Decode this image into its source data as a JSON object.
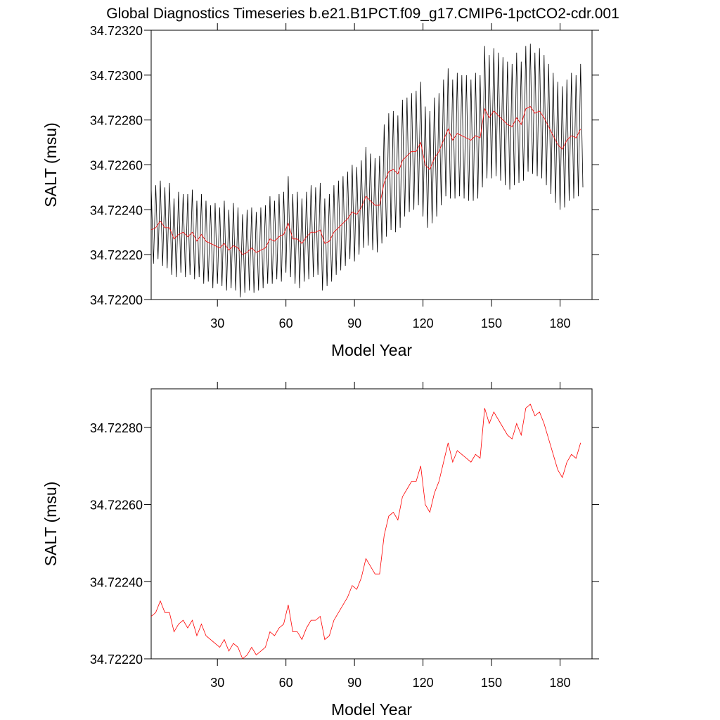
{
  "chart_data": [
    {
      "type": "line",
      "title": "Global Diagnostics Timeseries b.e21.B1PCT.f09_g17.CMIP6-1pctCO2-cdr.001",
      "xlabel": "Model Year",
      "ylabel": "SALT (msu)",
      "xlim": [
        1,
        194
      ],
      "xticks": [
        30,
        60,
        90,
        120,
        150,
        180
      ],
      "ylim": [
        34.722,
        34.7232
      ],
      "yticks": [
        {
          "value": 34.722,
          "label": "34.72200"
        },
        {
          "value": 34.7222,
          "label": "34.72220"
        },
        {
          "value": 34.7224,
          "label": "34.72240"
        },
        {
          "value": 34.7226,
          "label": "34.72260"
        },
        {
          "value": 34.7228,
          "label": "34.72280"
        },
        {
          "value": 34.723,
          "label": "34.72300"
        },
        {
          "value": 34.7232,
          "label": "34.72320"
        }
      ],
      "series": [
        {
          "color": "#000000",
          "x": [
            1,
            2,
            3,
            4,
            5,
            6,
            7,
            8,
            9,
            10,
            11,
            12,
            13,
            14,
            15,
            16,
            17,
            18,
            19,
            20,
            21,
            22,
            23,
            24,
            25,
            26,
            27,
            28,
            29,
            30,
            31,
            32,
            33,
            34,
            35,
            36,
            37,
            38,
            39,
            40,
            41,
            42,
            43,
            44,
            45,
            46,
            47,
            48,
            49,
            50,
            51,
            52,
            53,
            54,
            55,
            56,
            57,
            58,
            59,
            60,
            61,
            62,
            63,
            64,
            65,
            66,
            67,
            68,
            69,
            70,
            71,
            72,
            73,
            74,
            75,
            76,
            77,
            78,
            79,
            80,
            81,
            82,
            83,
            84,
            85,
            86,
            87,
            88,
            89,
            90,
            91,
            92,
            93,
            94,
            95,
            96,
            97,
            98,
            99,
            100,
            101,
            102,
            103,
            104,
            105,
            106,
            107,
            108,
            109,
            110,
            111,
            112,
            113,
            114,
            115,
            116,
            117,
            118,
            119,
            120,
            121,
            122,
            123,
            124,
            125,
            126,
            127,
            128,
            129,
            130,
            131,
            132,
            133,
            134,
            135,
            136,
            137,
            138,
            139,
            140,
            141,
            142,
            143,
            144,
            145,
            146,
            147,
            148,
            149,
            150,
            151,
            152,
            153,
            154,
            155,
            156,
            157,
            158,
            159,
            160,
            161,
            162,
            163,
            164,
            165,
            166,
            167,
            168,
            169,
            170,
            171,
            172,
            173,
            174,
            175,
            176,
            177,
            178,
            179,
            180,
            181,
            182,
            183,
            184,
            185,
            186,
            187,
            188,
            189,
            190
          ],
          "values": [
            34.7225,
            34.72216,
            34.72251,
            34.72218,
            34.72253,
            34.72215,
            34.7225,
            34.72214,
            34.72252,
            34.72211,
            34.72245,
            34.7221,
            34.72248,
            34.72212,
            34.72247,
            34.7221,
            34.72247,
            34.72211,
            34.72249,
            34.72209,
            34.72244,
            34.7221,
            34.72247,
            34.72207,
            34.72244,
            34.72208,
            34.72242,
            34.72205,
            34.72243,
            34.72207,
            34.72241,
            34.72206,
            34.72244,
            34.72204,
            34.7224,
            34.72205,
            34.72243,
            34.72204,
            34.72241,
            34.72201,
            34.72238,
            34.72203,
            34.7224,
            34.72204,
            34.72241,
            34.72203,
            34.72239,
            34.72204,
            34.72241,
            34.72205,
            34.72242,
            34.72207,
            34.72246,
            34.72207,
            34.72244,
            34.72209,
            34.72247,
            34.72208,
            34.72248,
            34.72212,
            34.72255,
            34.7221,
            34.72247,
            34.72207,
            34.72248,
            34.72205,
            34.72245,
            34.72208,
            34.72248,
            34.72209,
            34.72251,
            34.7221,
            34.7225,
            34.72211,
            34.72252,
            34.72204,
            34.72245,
            34.72206,
            34.72247,
            34.72208,
            34.72251,
            34.72211,
            34.72253,
            34.72213,
            34.72255,
            34.72215,
            34.72257,
            34.72218,
            34.7226,
            34.72217,
            34.72259,
            34.7222,
            34.72262,
            34.72223,
            34.72268,
            34.72224,
            34.72265,
            34.72222,
            34.72263,
            34.72221,
            34.72264,
            34.72225,
            34.72278,
            34.72228,
            34.72283,
            34.72231,
            34.72284,
            34.7223,
            34.72282,
            34.72232,
            34.72289,
            34.72237,
            34.7229,
            34.72239,
            34.72292,
            34.7224,
            34.72293,
            34.72242,
            34.72297,
            34.72237,
            34.72286,
            34.72232,
            34.72284,
            34.72234,
            34.7229,
            34.72237,
            34.72292,
            34.72242,
            34.72298,
            34.72246,
            34.72303,
            34.72245,
            34.72298,
            34.72245,
            34.72301,
            34.72246,
            34.723,
            34.72245,
            34.723,
            34.72244,
            34.72298,
            34.72244,
            34.72301,
            34.72245,
            34.723,
            34.7225,
            34.72313,
            34.72254,
            34.72309,
            34.72254,
            34.72312,
            34.72255,
            34.7231,
            34.72253,
            34.72308,
            34.72251,
            34.72306,
            34.72249,
            34.72305,
            34.72251,
            34.7231,
            34.72252,
            34.72306,
            34.72253,
            34.72313,
            34.72257,
            34.72314,
            34.72256,
            34.7231,
            34.72255,
            34.72312,
            34.72254,
            34.72309,
            34.72251,
            34.72305,
            34.72247,
            34.72301,
            34.72243,
            34.72297,
            34.7224,
            34.72295,
            34.72241,
            34.72298,
            34.72244,
            34.72301,
            34.72245,
            34.723,
            34.72246,
            34.72305,
            34.7225
          ]
        },
        {
          "color": "#ff0000",
          "x": [
            1,
            3,
            5,
            7,
            9,
            11,
            13,
            15,
            17,
            19,
            21,
            23,
            25,
            27,
            29,
            31,
            33,
            35,
            37,
            39,
            41,
            43,
            45,
            47,
            49,
            51,
            53,
            55,
            57,
            59,
            61,
            63,
            65,
            67,
            69,
            71,
            73,
            75,
            77,
            79,
            81,
            83,
            85,
            87,
            89,
            91,
            93,
            95,
            97,
            99,
            101,
            103,
            105,
            107,
            109,
            111,
            113,
            115,
            117,
            119,
            121,
            123,
            125,
            127,
            129,
            131,
            133,
            135,
            137,
            139,
            141,
            143,
            145,
            147,
            149,
            151,
            153,
            155,
            157,
            159,
            161,
            163,
            165,
            167,
            169,
            171,
            173,
            175,
            177,
            179,
            181,
            183,
            185,
            187,
            189
          ],
          "values": [
            34.72231,
            34.72232,
            34.72235,
            34.72232,
            34.72232,
            34.72227,
            34.72229,
            34.7223,
            34.72228,
            34.7223,
            34.72226,
            34.72229,
            34.72226,
            34.72225,
            34.72224,
            34.72223,
            34.72225,
            34.72222,
            34.72224,
            34.72223,
            34.7222,
            34.72221,
            34.72223,
            34.72221,
            34.72222,
            34.72223,
            34.72227,
            34.72226,
            34.72228,
            34.72229,
            34.72234,
            34.72227,
            34.72227,
            34.72225,
            34.72228,
            34.7223,
            34.7223,
            34.72231,
            34.72225,
            34.72226,
            34.7223,
            34.72232,
            34.72234,
            34.72236,
            34.72239,
            34.72238,
            34.72241,
            34.72246,
            34.72244,
            34.72242,
            34.72242,
            34.72252,
            34.72257,
            34.72258,
            34.72256,
            34.72262,
            34.72264,
            34.72266,
            34.72266,
            34.7227,
            34.7226,
            34.72258,
            34.72263,
            34.72266,
            34.72271,
            34.72276,
            34.72271,
            34.72274,
            34.72273,
            34.72272,
            34.72271,
            34.72273,
            34.72272,
            34.72285,
            34.72281,
            34.72284,
            34.72282,
            34.7228,
            34.72278,
            34.72277,
            34.72281,
            34.72278,
            34.72285,
            34.72286,
            34.72283,
            34.72284,
            34.72281,
            34.72277,
            34.72273,
            34.72269,
            34.72267,
            34.72271,
            34.72273,
            34.72272,
            34.72276
          ]
        }
      ]
    },
    {
      "type": "line",
      "xlabel": "Model Year",
      "ylabel": "SALT (msu)",
      "xlim": [
        1,
        194
      ],
      "xticks": [
        30,
        60,
        90,
        120,
        150,
        180
      ],
      "ylim": [
        34.7222,
        34.7229
      ],
      "yticks": [
        {
          "value": 34.7222,
          "label": "34.72220"
        },
        {
          "value": 34.7224,
          "label": "34.72240"
        },
        {
          "value": 34.7226,
          "label": "34.72260"
        },
        {
          "value": 34.7228,
          "label": "34.72280"
        }
      ],
      "series": [
        {
          "color": "#ff0000",
          "x": [
            1,
            3,
            5,
            7,
            9,
            11,
            13,
            15,
            17,
            19,
            21,
            23,
            25,
            27,
            29,
            31,
            33,
            35,
            37,
            39,
            41,
            43,
            45,
            47,
            49,
            51,
            53,
            55,
            57,
            59,
            61,
            63,
            65,
            67,
            69,
            71,
            73,
            75,
            77,
            79,
            81,
            83,
            85,
            87,
            89,
            91,
            93,
            95,
            97,
            99,
            101,
            103,
            105,
            107,
            109,
            111,
            113,
            115,
            117,
            119,
            121,
            123,
            125,
            127,
            129,
            131,
            133,
            135,
            137,
            139,
            141,
            143,
            145,
            147,
            149,
            151,
            153,
            155,
            157,
            159,
            161,
            163,
            165,
            167,
            169,
            171,
            173,
            175,
            177,
            179,
            181,
            183,
            185,
            187,
            189
          ],
          "values": [
            34.72231,
            34.72232,
            34.72235,
            34.72232,
            34.72232,
            34.72227,
            34.72229,
            34.7223,
            34.72228,
            34.7223,
            34.72226,
            34.72229,
            34.72226,
            34.72225,
            34.72224,
            34.72223,
            34.72225,
            34.72222,
            34.72224,
            34.72223,
            34.7222,
            34.72221,
            34.72223,
            34.72221,
            34.72222,
            34.72223,
            34.72227,
            34.72226,
            34.72228,
            34.72229,
            34.72234,
            34.72227,
            34.72227,
            34.72225,
            34.72228,
            34.7223,
            34.7223,
            34.72231,
            34.72225,
            34.72226,
            34.7223,
            34.72232,
            34.72234,
            34.72236,
            34.72239,
            34.72238,
            34.72241,
            34.72246,
            34.72244,
            34.72242,
            34.72242,
            34.72252,
            34.72257,
            34.72258,
            34.72256,
            34.72262,
            34.72264,
            34.72266,
            34.72266,
            34.7227,
            34.7226,
            34.72258,
            34.72263,
            34.72266,
            34.72271,
            34.72276,
            34.72271,
            34.72274,
            34.72273,
            34.72272,
            34.72271,
            34.72273,
            34.72272,
            34.72285,
            34.72281,
            34.72284,
            34.72282,
            34.7228,
            34.72278,
            34.72277,
            34.72281,
            34.72278,
            34.72285,
            34.72286,
            34.72283,
            34.72284,
            34.72281,
            34.72277,
            34.72273,
            34.72269,
            34.72267,
            34.72271,
            34.72273,
            34.72272,
            34.72276
          ]
        }
      ]
    }
  ]
}
